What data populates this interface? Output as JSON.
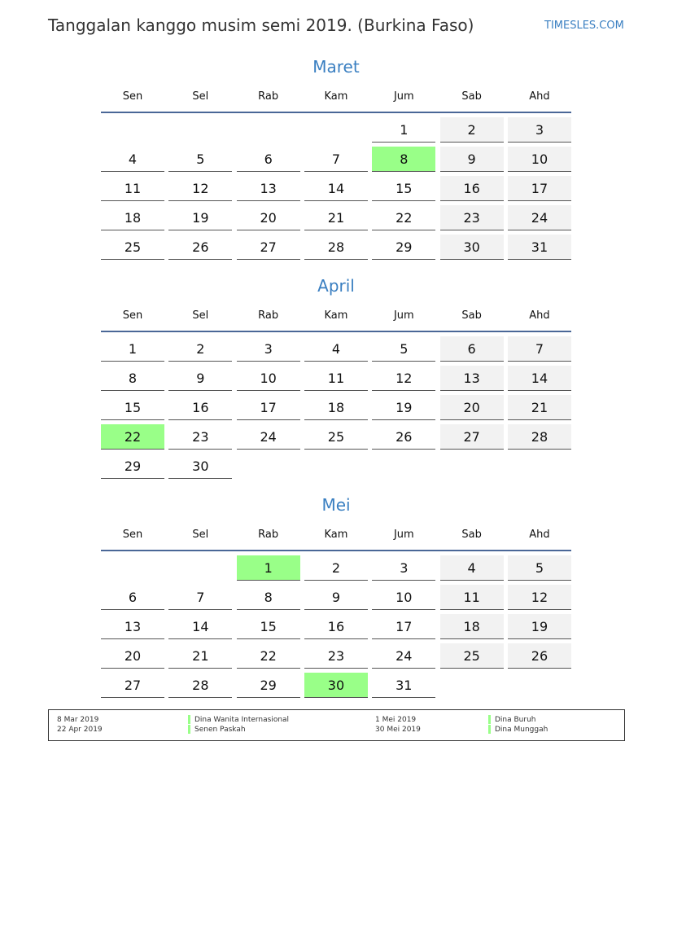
{
  "title": "Tanggalan kanggo musim semi 2019. (Burkina Faso)",
  "brand": "TIMESLES.COM",
  "colors": {
    "accent": "#3a7fc1",
    "holiday": "#99ff88",
    "weekend": "#f2f2f2",
    "header_line": "#4a6797"
  },
  "weekdays": [
    "Sen",
    "Sel",
    "Rab",
    "Kam",
    "Jum",
    "Sab",
    "Ahd"
  ],
  "months": [
    {
      "name": "Maret",
      "weeks": [
        [
          null,
          null,
          null,
          null,
          1,
          2,
          3
        ],
        [
          4,
          5,
          6,
          7,
          8,
          9,
          10
        ],
        [
          11,
          12,
          13,
          14,
          15,
          16,
          17
        ],
        [
          18,
          19,
          20,
          21,
          22,
          23,
          24
        ],
        [
          25,
          26,
          27,
          28,
          29,
          30,
          31
        ]
      ],
      "holidays": [
        8
      ]
    },
    {
      "name": "April",
      "weeks": [
        [
          1,
          2,
          3,
          4,
          5,
          6,
          7
        ],
        [
          8,
          9,
          10,
          11,
          12,
          13,
          14
        ],
        [
          15,
          16,
          17,
          18,
          19,
          20,
          21
        ],
        [
          22,
          23,
          24,
          25,
          26,
          27,
          28
        ],
        [
          29,
          30,
          null,
          null,
          null,
          null,
          null
        ]
      ],
      "holidays": [
        22
      ]
    },
    {
      "name": "Mei",
      "weeks": [
        [
          null,
          null,
          1,
          2,
          3,
          4,
          5
        ],
        [
          6,
          7,
          8,
          9,
          10,
          11,
          12
        ],
        [
          13,
          14,
          15,
          16,
          17,
          18,
          19
        ],
        [
          20,
          21,
          22,
          23,
          24,
          25,
          26
        ],
        [
          27,
          28,
          29,
          30,
          31,
          null,
          null
        ]
      ],
      "holidays": [
        1,
        30
      ]
    }
  ],
  "legend": [
    {
      "date": "8 Mar 2019",
      "name": "Dina Wanita Internasional"
    },
    {
      "date": "22 Apr 2019",
      "name": "Senen Paskah"
    },
    {
      "date": "1 Mei 2019",
      "name": "Dina Buruh"
    },
    {
      "date": "30 Mei 2019",
      "name": "Dina Munggah"
    }
  ]
}
